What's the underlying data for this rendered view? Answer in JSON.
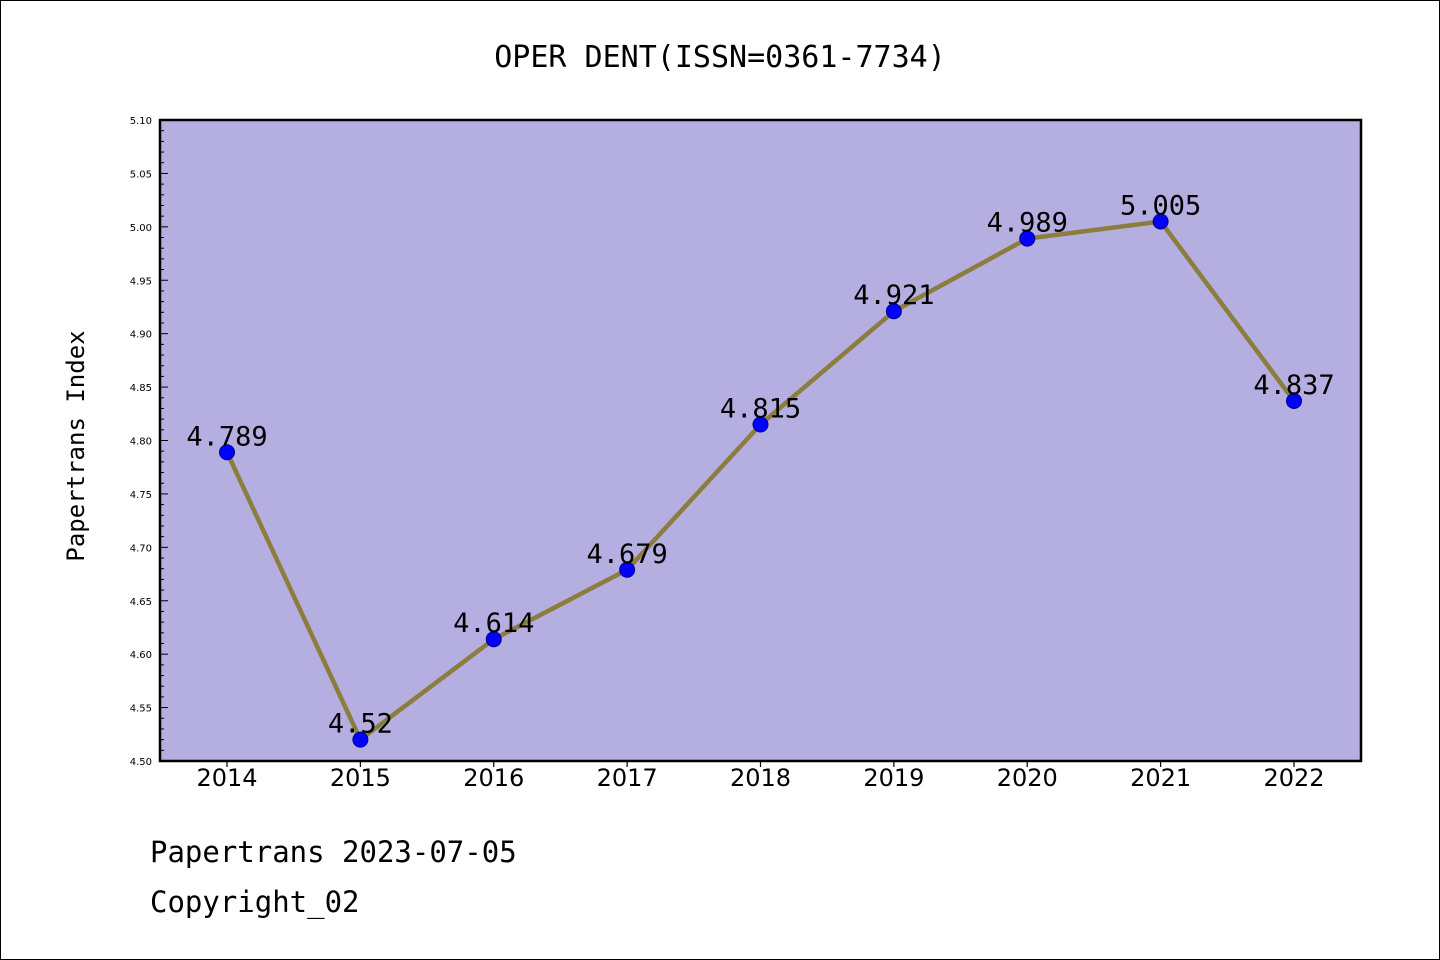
{
  "chart_data": {
    "type": "line",
    "title": "OPER DENT(ISSN=0361-7734)",
    "ylabel": "Papertrans Index",
    "xlabel": "",
    "categories": [
      "2014",
      "2015",
      "2016",
      "2017",
      "2018",
      "2019",
      "2020",
      "2021",
      "2022"
    ],
    "values": [
      4.789,
      4.52,
      4.614,
      4.679,
      4.815,
      4.921,
      4.989,
      5.005,
      4.837
    ],
    "data_labels": [
      "4.789",
      "4.52",
      "4.614",
      "4.679",
      "4.815",
      "4.921",
      "4.989",
      "5.005",
      "4.837"
    ],
    "ylim": [
      4.5,
      5.1
    ],
    "yticks": [
      "4.50",
      "4.55",
      "4.60",
      "4.65",
      "4.70",
      "4.75",
      "4.80",
      "4.85",
      "4.90",
      "4.95",
      "5.00",
      "5.05",
      "5.10"
    ],
    "grid": false,
    "colors": {
      "plot_background": "#b5aee0",
      "line": "#8b7d3c",
      "marker": "#0000ff"
    }
  },
  "footer": {
    "line1": "Papertrans 2023-07-05",
    "line2": "Copyright_02"
  }
}
